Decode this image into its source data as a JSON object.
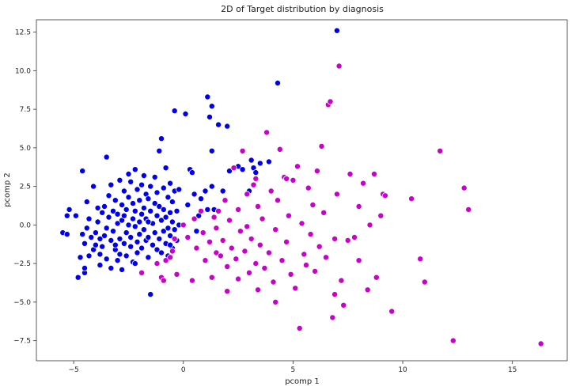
{
  "chart_data": {
    "type": "scatter",
    "title": "2D of Target distribution by diagnosis",
    "xlabel": "pcomp 1",
    "ylabel": "pcomp 2",
    "xlim": [
      -6.7,
      17.5
    ],
    "ylim": [
      -8.8,
      13.3
    ],
    "xticks": [
      -5,
      0,
      5,
      10,
      15
    ],
    "xtick_labels": [
      "−5",
      "0",
      "5",
      "10",
      "15"
    ],
    "yticks": [
      12.5,
      10.0,
      7.5,
      5.0,
      2.5,
      0.0,
      -2.5,
      -5.0,
      -7.5
    ],
    "ytick_labels": [
      "12.5",
      "10.0",
      "7.5",
      "5.0",
      "2.5",
      "0.0",
      "−2.5",
      "−5.0",
      "−7.5"
    ],
    "grid": false,
    "legend": false,
    "series": [
      {
        "color": "#0000ee",
        "points": [
          [
            -5.5,
            -0.5
          ],
          [
            -5.3,
            0.6
          ],
          [
            -5.2,
            1.0
          ],
          [
            -5.3,
            -0.6
          ],
          [
            -4.9,
            0.6
          ],
          [
            -4.8,
            -3.4
          ],
          [
            -4.7,
            -2.1
          ],
          [
            -4.6,
            -0.6
          ],
          [
            -4.5,
            -3.1
          ],
          [
            -4.5,
            -2.8
          ],
          [
            -4.4,
            1.5
          ],
          [
            -4.6,
            3.5
          ],
          [
            -4.5,
            -1.2
          ],
          [
            -4.4,
            -0.2
          ],
          [
            -4.3,
            -2.0
          ],
          [
            -4.3,
            0.4
          ],
          [
            -4.2,
            -0.8
          ],
          [
            -4.1,
            -1.6
          ],
          [
            -4.1,
            2.5
          ],
          [
            -4.0,
            -0.5
          ],
          [
            -4.0,
            -1.3
          ],
          [
            -3.9,
            1.1
          ],
          [
            -3.9,
            0.2
          ],
          [
            -3.8,
            -1.9
          ],
          [
            -3.8,
            -2.6
          ],
          [
            -3.7,
            0.8
          ],
          [
            -3.7,
            -1.4
          ],
          [
            -3.6,
            1.2
          ],
          [
            -3.6,
            -0.7
          ],
          [
            -3.5,
            4.4
          ],
          [
            -3.5,
            -0.2
          ],
          [
            -3.5,
            -2.2
          ],
          [
            -3.4,
            0.5
          ],
          [
            -3.4,
            1.9
          ],
          [
            -3.3,
            -1.0
          ],
          [
            -3.3,
            -2.8
          ],
          [
            -3.3,
            2.6
          ],
          [
            -3.2,
            0.9
          ],
          [
            -3.2,
            -0.4
          ],
          [
            -3.1,
            -1.6
          ],
          [
            -3.1,
            1.6
          ],
          [
            -3.0,
            -2.3
          ],
          [
            -3.0,
            0.1
          ],
          [
            -3.0,
            0.7
          ],
          [
            -2.9,
            -0.9
          ],
          [
            -2.9,
            -1.9
          ],
          [
            -2.8,
            1.3
          ],
          [
            -2.8,
            0.3
          ],
          [
            -2.8,
            -2.9
          ],
          [
            -2.7,
            -1.2
          ],
          [
            -2.7,
            0.6
          ],
          [
            -2.7,
            2.2
          ],
          [
            -2.6,
            -0.5
          ],
          [
            -2.6,
            1.0
          ],
          [
            -2.6,
            -2.0
          ],
          [
            -2.5,
            3.3
          ],
          [
            -2.5,
            0.0
          ],
          [
            -2.5,
            1.8
          ],
          [
            -2.4,
            -1.4
          ],
          [
            -2.4,
            2.8
          ],
          [
            -2.4,
            -0.8
          ],
          [
            -2.3,
            0.4
          ],
          [
            -2.3,
            1.4
          ],
          [
            -2.3,
            -2.4
          ],
          [
            -2.2,
            -0.1
          ],
          [
            -2.2,
            3.6
          ],
          [
            -2.2,
            0.9
          ],
          [
            -2.1,
            -1.1
          ],
          [
            -2.1,
            2.3
          ],
          [
            -2.1,
            -1.8
          ],
          [
            -2.0,
            0.2
          ],
          [
            -2.0,
            1.6
          ],
          [
            -2.0,
            -0.6
          ],
          [
            -1.9,
            2.6
          ],
          [
            -1.9,
            0.7
          ],
          [
            -1.9,
            -1.5
          ],
          [
            -1.8,
            3.2
          ],
          [
            -1.8,
            1.1
          ],
          [
            -1.8,
            -0.3
          ],
          [
            -1.7,
            -1.0
          ],
          [
            -1.7,
            2.0
          ],
          [
            -1.7,
            0.4
          ],
          [
            -1.6,
            -2.1
          ],
          [
            -1.6,
            1.7
          ],
          [
            -1.6,
            -0.8
          ],
          [
            -1.5,
            -4.5
          ],
          [
            -1.5,
            0.9
          ],
          [
            -1.5,
            2.5
          ],
          [
            -1.4,
            -1.3
          ],
          [
            -1.4,
            0.1
          ],
          [
            -1.3,
            1.4
          ],
          [
            -1.3,
            -0.5
          ],
          [
            -1.3,
            3.1
          ],
          [
            -1.2,
            -1.6
          ],
          [
            -1.2,
            0.6
          ],
          [
            -1.2,
            2.1
          ],
          [
            -1.1,
            4.8
          ],
          [
            -1.1,
            -0.9
          ],
          [
            -1.1,
            1.2
          ],
          [
            -1.0,
            5.6
          ],
          [
            -1.0,
            -1.8
          ],
          [
            -1.0,
            0.3
          ],
          [
            -0.9,
            2.4
          ],
          [
            -0.9,
            -0.4
          ],
          [
            -0.9,
            1.0
          ],
          [
            -0.8,
            -1.2
          ],
          [
            -0.8,
            3.7
          ],
          [
            -0.8,
            0.5
          ],
          [
            -0.7,
            -0.2
          ],
          [
            -0.7,
            1.8
          ],
          [
            -0.7,
            -2.0
          ],
          [
            -0.6,
            0.8
          ],
          [
            -0.6,
            2.7
          ],
          [
            -0.6,
            -0.7
          ],
          [
            -0.5,
            0.2
          ],
          [
            -0.5,
            1.5
          ],
          [
            -0.5,
            -1.5
          ],
          [
            -0.4,
            2.2
          ],
          [
            -0.4,
            -0.3
          ],
          [
            -0.4,
            7.4
          ],
          [
            -0.3,
            0.9
          ],
          [
            -0.3,
            -1.0
          ],
          [
            -0.2,
            2.3
          ],
          [
            -0.2,
            0.0
          ],
          [
            0.1,
            7.2
          ],
          [
            0.2,
            1.3
          ],
          [
            0.3,
            3.6
          ],
          [
            0.4,
            3.4
          ],
          [
            0.5,
            2.0
          ],
          [
            0.6,
            -0.4
          ],
          [
            0.7,
            0.6
          ],
          [
            0.8,
            1.7
          ],
          [
            1.0,
            2.2
          ],
          [
            1.1,
            8.3
          ],
          [
            1.1,
            1.0
          ],
          [
            1.2,
            7.0
          ],
          [
            1.3,
            7.7
          ],
          [
            1.3,
            2.5
          ],
          [
            1.3,
            4.8
          ],
          [
            1.4,
            1.0
          ],
          [
            1.6,
            6.5
          ],
          [
            1.8,
            2.2
          ],
          [
            2.0,
            6.4
          ],
          [
            2.1,
            3.5
          ],
          [
            2.5,
            3.8
          ],
          [
            2.7,
            3.6
          ],
          [
            3.0,
            2.2
          ],
          [
            3.1,
            4.2
          ],
          [
            3.2,
            3.7
          ],
          [
            3.3,
            3.4
          ],
          [
            3.5,
            4.0
          ],
          [
            3.9,
            4.1
          ],
          [
            4.3,
            9.2
          ],
          [
            7.0,
            12.6
          ],
          [
            -3.8,
            -0.9
          ],
          [
            -3.1,
            -1.3
          ],
          [
            -2.9,
            2.9
          ],
          [
            -2.2,
            -2.5
          ],
          [
            -1.6,
            0.2
          ],
          [
            -0.6,
            -1.3
          ]
        ]
      },
      {
        "color": "#cc00cc",
        "points": [
          [
            -1.9,
            -3.1
          ],
          [
            -1.2,
            -2.5
          ],
          [
            -1.0,
            -3.4
          ],
          [
            -0.9,
            -3.6
          ],
          [
            -0.8,
            -2.3
          ],
          [
            -0.6,
            -2.1
          ],
          [
            -0.5,
            -1.7
          ],
          [
            -0.4,
            -0.9
          ],
          [
            -0.3,
            -3.2
          ],
          [
            0.0,
            0.0
          ],
          [
            0.2,
            -0.8
          ],
          [
            0.4,
            -3.6
          ],
          [
            0.5,
            0.4
          ],
          [
            0.6,
            -1.5
          ],
          [
            0.8,
            0.9
          ],
          [
            0.9,
            -0.5
          ],
          [
            1.0,
            -2.3
          ],
          [
            1.2,
            -1.1
          ],
          [
            1.3,
            -3.4
          ],
          [
            1.4,
            0.5
          ],
          [
            1.5,
            -1.8
          ],
          [
            1.6,
            0.9
          ],
          [
            1.7,
            -2.0
          ],
          [
            1.8,
            -1.0
          ],
          [
            1.9,
            1.6
          ],
          [
            2.0,
            -2.7
          ],
          [
            2.0,
            -4.3
          ],
          [
            2.1,
            0.3
          ],
          [
            2.2,
            -1.5
          ],
          [
            2.3,
            3.7
          ],
          [
            2.4,
            -2.2
          ],
          [
            2.5,
            -3.5
          ],
          [
            2.5,
            1.0
          ],
          [
            2.6,
            -0.4
          ],
          [
            2.7,
            4.8
          ],
          [
            2.8,
            -1.7
          ],
          [
            2.9,
            2.0
          ],
          [
            3.0,
            -3.1
          ],
          [
            3.1,
            -0.9
          ],
          [
            3.2,
            2.6
          ],
          [
            3.3,
            -2.5
          ],
          [
            3.4,
            -4.2
          ],
          [
            3.4,
            1.2
          ],
          [
            3.5,
            -1.3
          ],
          [
            3.6,
            0.4
          ],
          [
            3.7,
            -2.8
          ],
          [
            3.8,
            6.0
          ],
          [
            3.9,
            -1.8
          ],
          [
            4.0,
            2.2
          ],
          [
            4.1,
            -3.7
          ],
          [
            4.2,
            -0.3
          ],
          [
            4.2,
            -5.0
          ],
          [
            4.3,
            1.6
          ],
          [
            4.4,
            4.9
          ],
          [
            4.5,
            -2.3
          ],
          [
            4.6,
            3.1
          ],
          [
            4.7,
            -1.1
          ],
          [
            4.8,
            0.6
          ],
          [
            4.9,
            -3.2
          ],
          [
            5.0,
            2.9
          ],
          [
            5.1,
            -4.1
          ],
          [
            5.2,
            3.8
          ],
          [
            5.3,
            -6.7
          ],
          [
            5.4,
            0.1
          ],
          [
            5.5,
            -1.9
          ],
          [
            5.6,
            -2.6
          ],
          [
            5.7,
            2.4
          ],
          [
            5.8,
            -0.6
          ],
          [
            5.9,
            1.3
          ],
          [
            6.0,
            -3.0
          ],
          [
            6.1,
            3.5
          ],
          [
            6.2,
            -1.4
          ],
          [
            6.3,
            5.1
          ],
          [
            6.4,
            0.8
          ],
          [
            6.5,
            -2.1
          ],
          [
            6.6,
            7.8
          ],
          [
            6.7,
            8.0
          ],
          [
            6.8,
            -6.0
          ],
          [
            6.9,
            -0.9
          ],
          [
            7.0,
            2.0
          ],
          [
            7.1,
            10.3
          ],
          [
            7.2,
            -3.6
          ],
          [
            7.3,
            -5.2
          ],
          [
            7.5,
            -1.0
          ],
          [
            7.6,
            3.3
          ],
          [
            7.8,
            -0.8
          ],
          [
            8.0,
            -2.3
          ],
          [
            8.2,
            2.7
          ],
          [
            8.4,
            -4.2
          ],
          [
            8.5,
            0.0
          ],
          [
            8.7,
            3.3
          ],
          [
            8.8,
            -3.4
          ],
          [
            9.0,
            0.6
          ],
          [
            9.1,
            2.0
          ],
          [
            9.2,
            1.9
          ],
          [
            9.5,
            -5.6
          ],
          [
            10.4,
            1.7
          ],
          [
            10.8,
            -2.2
          ],
          [
            11.0,
            -3.7
          ],
          [
            11.7,
            4.8
          ],
          [
            12.3,
            -7.5
          ],
          [
            12.8,
            2.4
          ],
          [
            13.0,
            1.0
          ],
          [
            16.3,
            -7.7
          ],
          [
            3.3,
            3.0
          ],
          [
            4.7,
            3.0
          ],
          [
            1.5,
            -0.2
          ],
          [
            2.9,
            -0.1
          ],
          [
            8.0,
            1.2
          ],
          [
            6.9,
            -4.5
          ]
        ]
      }
    ]
  }
}
